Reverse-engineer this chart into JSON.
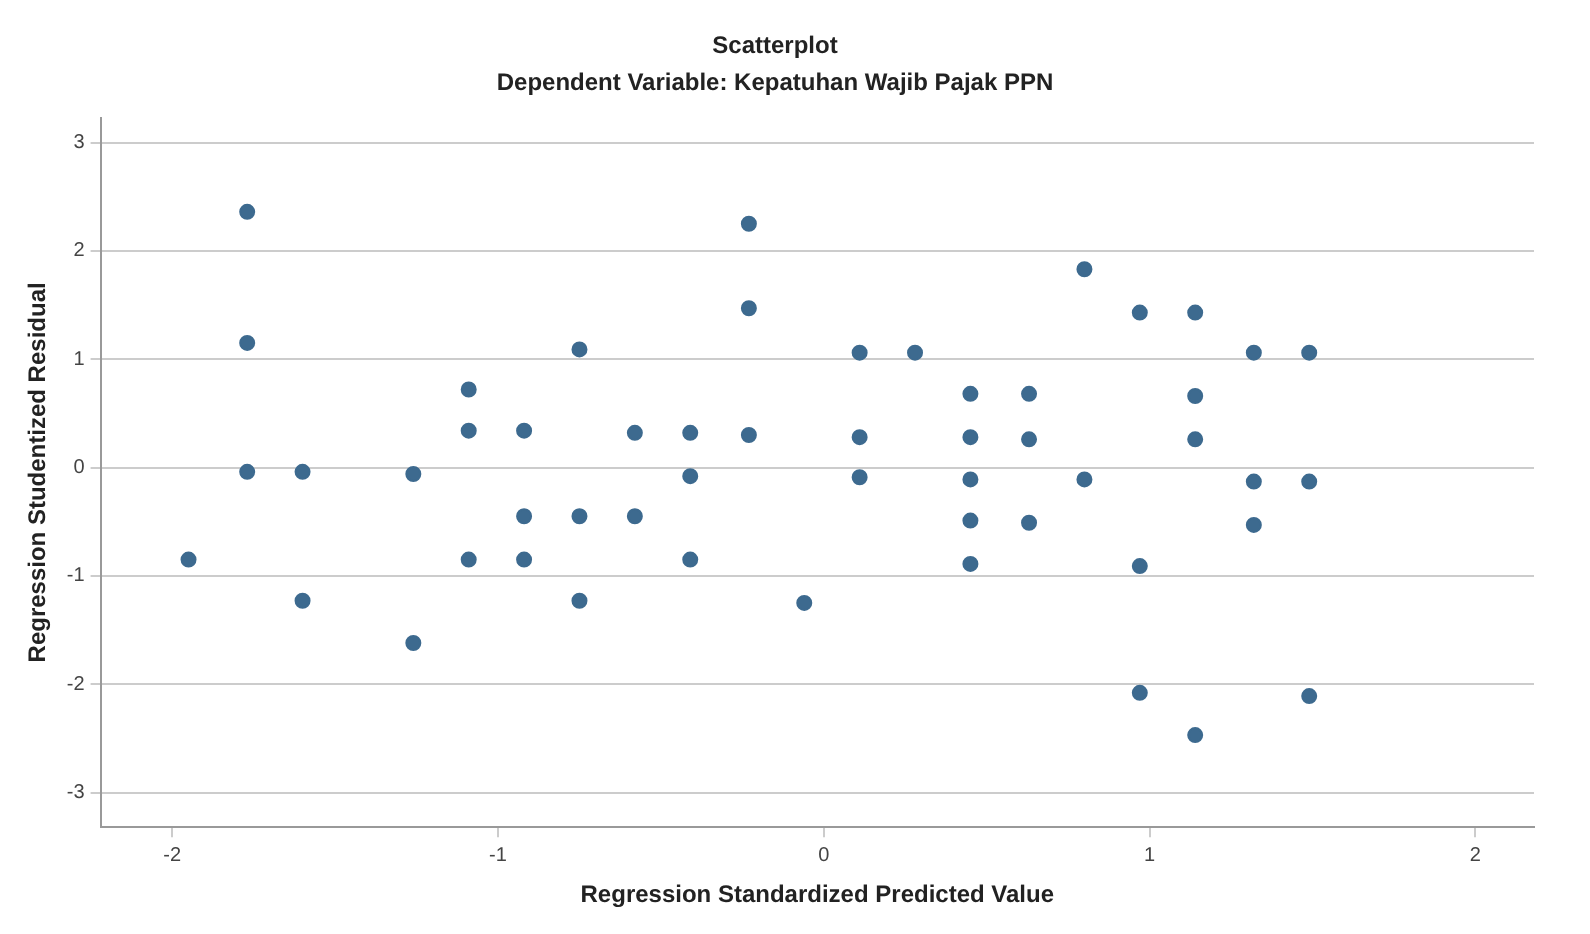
{
  "chart_data": {
    "type": "scatter",
    "title": "Scatterplot",
    "subtitle": "Dependent Variable: Kepatuhan Wajib Pajak PPN",
    "xlabel": "Regression Standardized Predicted Value",
    "ylabel": "Regression Studentized Residual",
    "x": [
      -1.95,
      -1.77,
      -1.77,
      -1.77,
      -1.6,
      -1.6,
      -1.26,
      -1.26,
      -1.09,
      -1.09,
      -1.09,
      -0.92,
      -0.92,
      -0.92,
      -0.75,
      -0.75,
      -0.75,
      -0.58,
      -0.58,
      -0.41,
      -0.41,
      -0.41,
      -0.23,
      -0.23,
      -0.23,
      -0.06,
      0.11,
      0.11,
      0.11,
      0.28,
      0.45,
      0.45,
      0.45,
      0.45,
      0.45,
      0.63,
      0.63,
      0.63,
      0.8,
      0.8,
      0.97,
      0.97,
      0.97,
      1.14,
      1.14,
      1.14,
      1.14,
      1.32,
      1.32,
      1.32,
      1.49,
      1.49,
      1.49
    ],
    "series": [
      {
        "color": "#3d6a8f",
        "values": [
          -0.85,
          2.36,
          1.15,
          -0.04,
          -0.04,
          -1.23,
          -0.06,
          -1.62,
          0.72,
          0.34,
          -0.85,
          0.34,
          -0.45,
          -0.85,
          1.09,
          -0.45,
          -1.23,
          0.32,
          -0.45,
          0.32,
          -0.08,
          -0.85,
          2.25,
          1.47,
          0.3,
          -1.25,
          1.06,
          0.28,
          -0.09,
          1.06,
          0.68,
          0.28,
          -0.11,
          -0.49,
          -0.89,
          0.68,
          0.26,
          -0.51,
          1.83,
          -0.11,
          1.43,
          -0.91,
          -2.08,
          1.43,
          0.66,
          0.26,
          -2.47,
          1.06,
          -0.13,
          -0.53,
          1.06,
          -0.13,
          -2.11
        ]
      }
    ],
    "xlim": [
      -2.22,
      2.18
    ],
    "ylim": [
      -3.32,
      3.23
    ],
    "xticks": [
      -2,
      -1,
      0,
      1,
      2
    ],
    "yticks": [
      -3,
      -2,
      -1,
      0,
      1,
      2,
      3
    ],
    "grid": "y",
    "marker": "circle",
    "legend": false
  }
}
